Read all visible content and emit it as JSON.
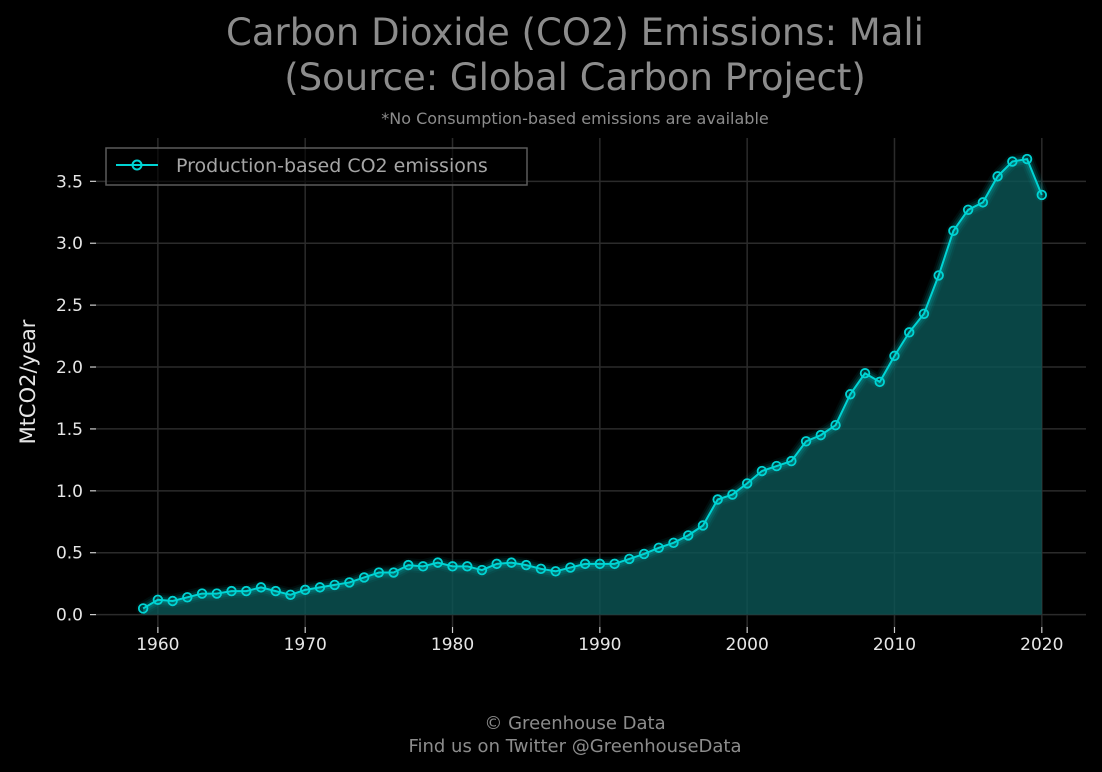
{
  "chart_data": {
    "type": "area",
    "title_lines": [
      "Carbon Dioxide (CO2) Emissions: Mali",
      "(Source: Global Carbon Project)"
    ],
    "subtitle": "*No Consumption-based emissions are available",
    "xlabel": "",
    "ylabel": "MtCO2/year",
    "xlim": [
      1955.8,
      2023.0
    ],
    "ylim": [
      -0.1,
      3.85
    ],
    "x_ticks": [
      1960,
      1970,
      1980,
      1990,
      2000,
      2010,
      2020
    ],
    "y_ticks": [
      0.0,
      0.5,
      1.0,
      1.5,
      2.0,
      2.5,
      3.0,
      3.5
    ],
    "x_tick_labels": [
      "1960",
      "1970",
      "1980",
      "1990",
      "2000",
      "2010",
      "2020"
    ],
    "y_tick_labels": [
      "0.0",
      "0.5",
      "1.0",
      "1.5",
      "2.0",
      "2.5",
      "3.0",
      "3.5"
    ],
    "grid": true,
    "legend_position": "top-left",
    "series": [
      {
        "name": "Production-based CO2 emissions",
        "color": "#00d4d4",
        "x": [
          1959,
          1960,
          1961,
          1962,
          1963,
          1964,
          1965,
          1966,
          1967,
          1968,
          1969,
          1970,
          1971,
          1972,
          1973,
          1974,
          1975,
          1976,
          1977,
          1978,
          1979,
          1980,
          1981,
          1982,
          1983,
          1984,
          1985,
          1986,
          1987,
          1988,
          1989,
          1990,
          1991,
          1992,
          1993,
          1994,
          1995,
          1996,
          1997,
          1998,
          1999,
          2000,
          2001,
          2002,
          2003,
          2004,
          2005,
          2006,
          2007,
          2008,
          2009,
          2010,
          2011,
          2012,
          2013,
          2014,
          2015,
          2016,
          2017,
          2018,
          2019,
          2020
        ],
        "values": [
          0.05,
          0.12,
          0.11,
          0.14,
          0.17,
          0.17,
          0.19,
          0.19,
          0.22,
          0.19,
          0.16,
          0.2,
          0.22,
          0.24,
          0.26,
          0.3,
          0.34,
          0.34,
          0.4,
          0.39,
          0.42,
          0.39,
          0.39,
          0.36,
          0.41,
          0.42,
          0.4,
          0.37,
          0.35,
          0.38,
          0.41,
          0.41,
          0.41,
          0.45,
          0.49,
          0.54,
          0.58,
          0.64,
          0.72,
          0.93,
          0.97,
          1.06,
          1.16,
          1.2,
          1.24,
          1.4,
          1.45,
          1.53,
          1.78,
          1.95,
          1.88,
          2.09,
          2.28,
          2.43,
          2.74,
          3.1,
          3.27,
          3.33,
          3.54,
          3.66,
          3.68,
          3.39
        ]
      }
    ]
  },
  "colors": {
    "background": "#000000",
    "grid": "#2b2b2b",
    "line": "#00d4d4",
    "fill": "#0b5656"
  },
  "footer": {
    "line1": "© Greenhouse Data",
    "line2": "Find us on Twitter @GreenhouseData"
  }
}
